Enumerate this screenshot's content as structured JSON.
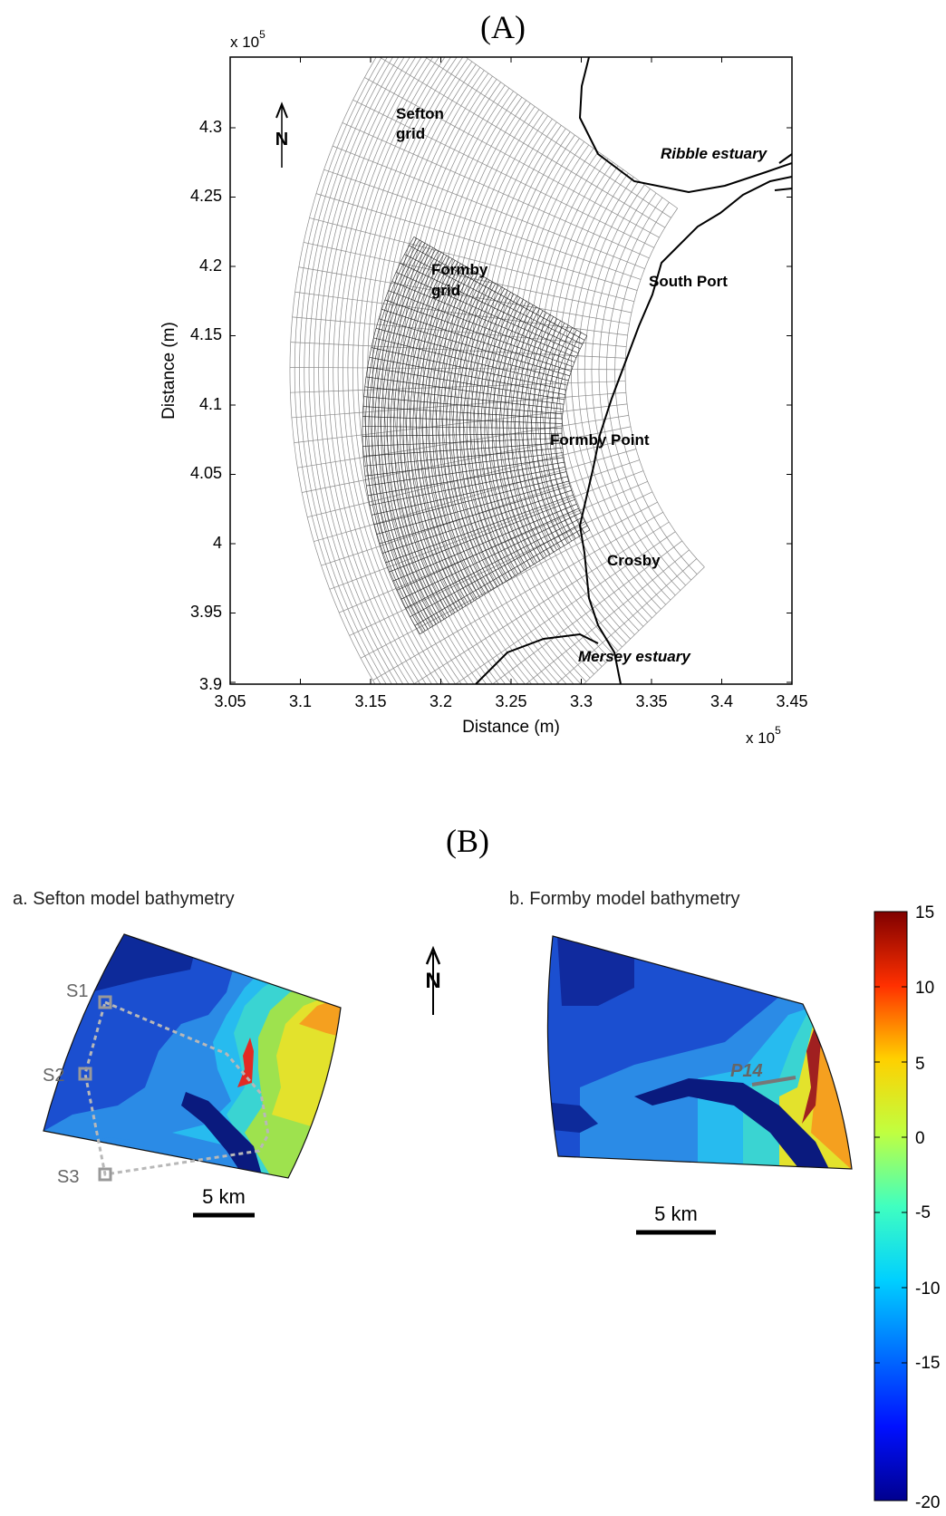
{
  "panel_a": {
    "label": "(A)",
    "xlabel": "Distance (m)",
    "ylabel": "Distance (m)",
    "x_ticks": [
      "3.05",
      "3.1",
      "3.15",
      "3.2",
      "3.25",
      "3.3",
      "3.35",
      "3.4",
      "3.45"
    ],
    "y_ticks": [
      "4.3",
      "4.25",
      "4.2",
      "4.15",
      "4.1",
      "4.05",
      "4",
      "3.95",
      "3.9"
    ],
    "x_exponent": "x 10",
    "y_exponent": "x 10",
    "exponent_power": "5",
    "north": "N",
    "labels": {
      "sefton_grid_1": "Sefton",
      "sefton_grid_2": "grid",
      "formby_grid_1": "Formby",
      "formby_grid_2": "grid",
      "ribble": "Ribble estuary",
      "south_port": "South Port",
      "formby_point": "Formby Point",
      "crosby": "Crosby",
      "mersey": "Mersey estuary"
    }
  },
  "panel_b": {
    "label": "(B)",
    "sub_a_title": "a. Sefton model bathymetry",
    "sub_b_title": "b. Formby model bathymetry",
    "north": "N",
    "scale_a": "5 km",
    "scale_b": "5 km",
    "stations": [
      "S1",
      "S2",
      "S3"
    ],
    "profile": "P14",
    "colorbar_ticks": [
      "15",
      "10",
      "5",
      "0",
      "-5",
      "-10",
      "-15",
      "-20"
    ],
    "colors": {
      "deep": "#0a1f8c",
      "mid_deep": "#1846c8",
      "mid": "#2c7de6",
      "light": "#27b9ef",
      "shallow": "#3fe0c8",
      "yellow": "#e5e82c",
      "orange": "#f49a22",
      "red": "#e02222"
    }
  }
}
